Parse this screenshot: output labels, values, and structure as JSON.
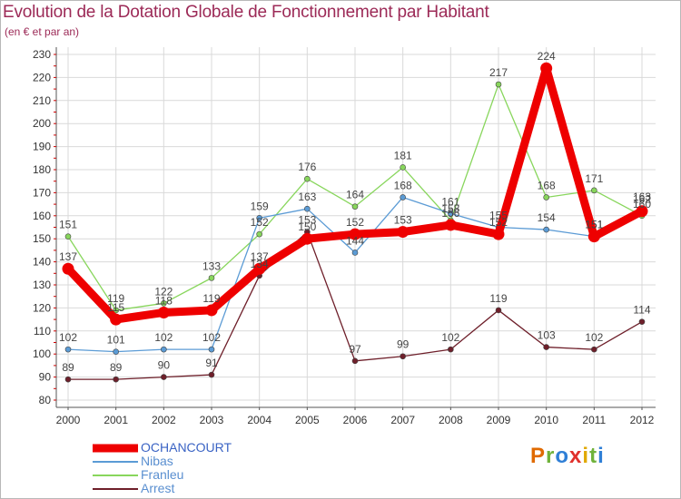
{
  "chart_data": {
    "type": "line",
    "title": "Evolution de la Dotation Globale de Fonctionnement par Habitant",
    "subtitle": "(en € et par an)",
    "x": [
      "2000",
      "2001",
      "2002",
      "2003",
      "2004",
      "2005",
      "2006",
      "2007",
      "2008",
      "2009",
      "2010",
      "2011",
      "2012"
    ],
    "ylim": [
      80,
      230
    ],
    "yticks": [
      80,
      90,
      100,
      110,
      120,
      130,
      140,
      150,
      160,
      170,
      180,
      190,
      200,
      210,
      220,
      230
    ],
    "series": [
      {
        "name": "Arrest",
        "color": "#6e1f2a",
        "values": [
          89,
          89,
          90,
          91,
          134,
          153,
          97,
          99,
          102,
          119,
          103,
          102,
          114
        ]
      },
      {
        "name": "Franleu",
        "color": "#88d65c",
        "values": [
          151,
          119,
          122,
          133,
          152,
          176,
          164,
          181,
          158,
          217,
          168,
          171,
          160
        ]
      },
      {
        "name": "Nibas",
        "color": "#5b9bd5",
        "values": [
          102,
          101,
          102,
          102,
          159,
          163,
          144,
          168,
          161,
          155,
          154,
          151,
          163
        ]
      },
      {
        "name": "OCHANCOURT",
        "color": "#ee0000",
        "values": [
          137,
          115,
          118,
          119,
          137,
          150,
          152,
          153,
          156,
          152,
          224,
          151,
          162
        ]
      }
    ],
    "legend": [
      "OCHANCOURT",
      "Nibas",
      "Franleu",
      "Arrest"
    ]
  },
  "logo": {
    "text": "Proxiti"
  }
}
